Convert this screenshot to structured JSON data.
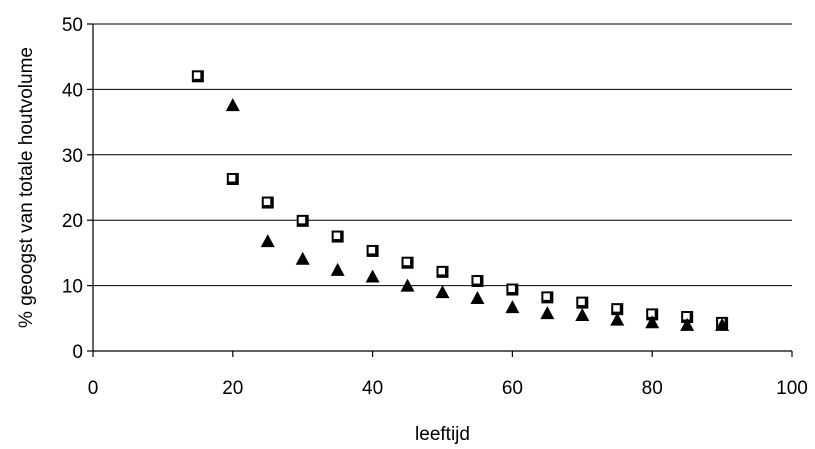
{
  "chart_data": {
    "type": "scatter",
    "title": "",
    "xlabel": "leeftijd",
    "ylabel": "% geoogst van totale houtvolume",
    "xlim": [
      0,
      100
    ],
    "ylim": [
      0,
      50
    ],
    "x_ticks": [
      0,
      20,
      40,
      60,
      80,
      100
    ],
    "y_ticks": [
      0,
      10,
      20,
      30,
      40,
      50
    ],
    "grid": "horizontal",
    "legend": "none",
    "series": [
      {
        "marker": "square",
        "color": "#000000",
        "points": [
          [
            15,
            42.0
          ],
          [
            20,
            26.3
          ],
          [
            25,
            22.7
          ],
          [
            30,
            19.9
          ],
          [
            35,
            17.5
          ],
          [
            40,
            15.3
          ],
          [
            45,
            13.5
          ],
          [
            50,
            12.1
          ],
          [
            55,
            10.7
          ],
          [
            60,
            9.4
          ],
          [
            65,
            8.2
          ],
          [
            70,
            7.4
          ],
          [
            75,
            6.4
          ],
          [
            80,
            5.6
          ],
          [
            85,
            5.2
          ],
          [
            90,
            4.3
          ]
        ]
      },
      {
        "marker": "triangle",
        "color": "#000000",
        "points": [
          [
            20,
            37.6
          ],
          [
            25,
            16.8
          ],
          [
            30,
            14.1
          ],
          [
            35,
            12.4
          ],
          [
            40,
            11.4
          ],
          [
            45,
            10.0
          ],
          [
            50,
            9.0
          ],
          [
            55,
            8.1
          ],
          [
            60,
            6.7
          ],
          [
            65,
            5.8
          ],
          [
            70,
            5.5
          ],
          [
            75,
            4.8
          ],
          [
            80,
            4.4
          ],
          [
            85,
            4.0
          ],
          [
            90,
            4.0
          ]
        ]
      }
    ]
  }
}
